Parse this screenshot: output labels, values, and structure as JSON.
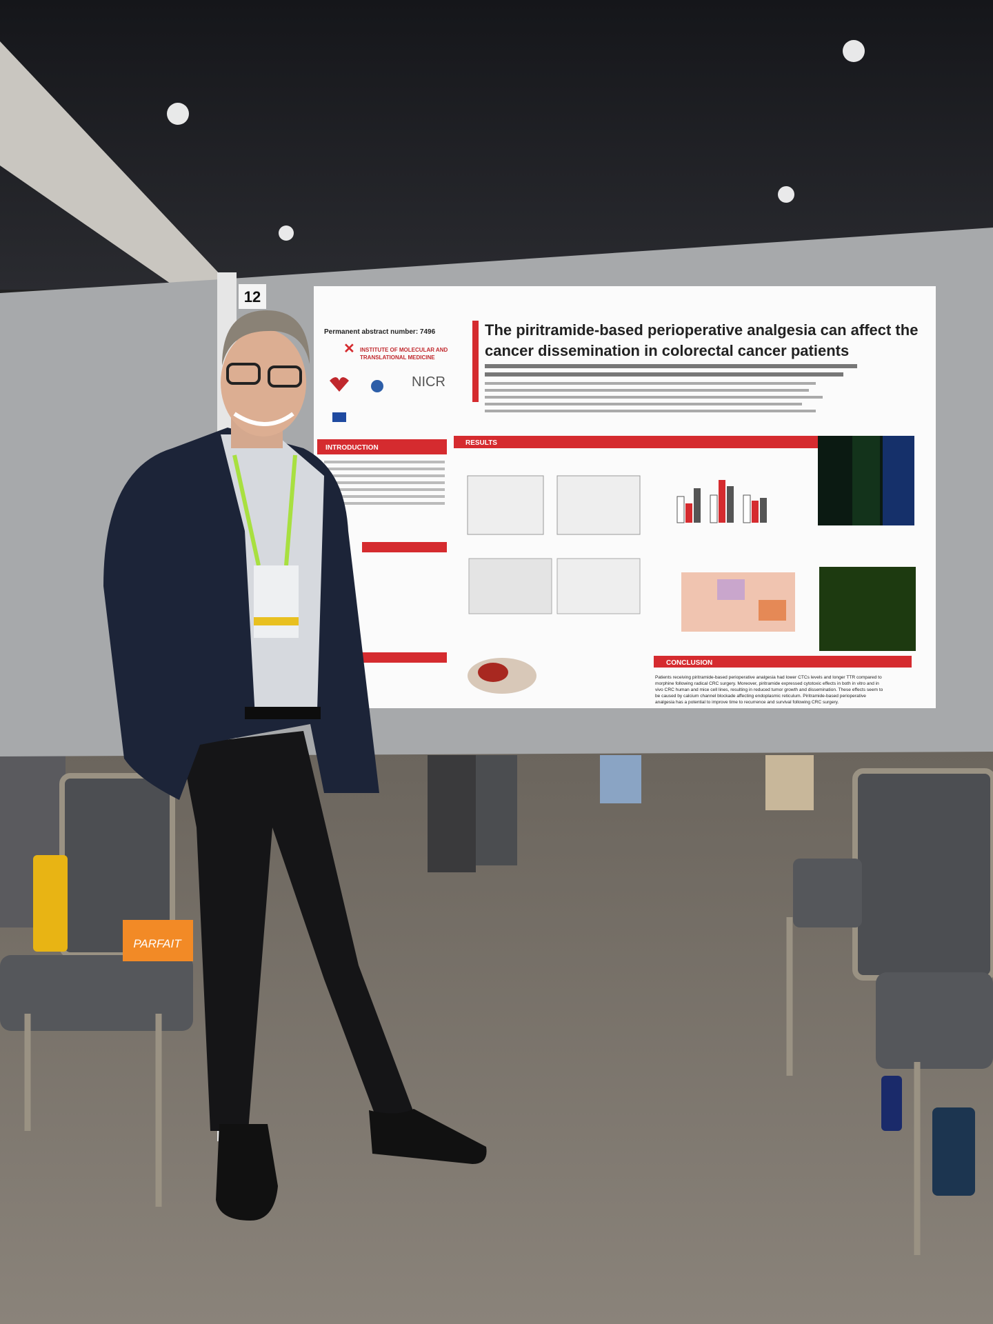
{
  "board": {
    "poster_number": "12"
  },
  "poster": {
    "abstract_number": "Permanent abstract number: 7496",
    "title_lines": [
      "The piritramide-based perioperative analgesia can affect the",
      "cancer dissemination in colorectal cancer patients"
    ],
    "logo_text": [
      "INSTITUTE OF MOLECULAR AND",
      "TRANSLATIONAL MEDICINE"
    ],
    "nicr": "NICR",
    "sections": {
      "introduction": "INTRODUCTION",
      "results": "RESULTS",
      "conclusion": "CONCLUSION"
    },
    "conclusion_lines": [
      "Patients receiving piritramide-based perioperative analgesia had lower CTCs levels and longer TTR compared to",
      "morphine following radical CRC surgery. Moreover, piritramide expressed cytotoxic effects in both in vitro and in",
      "vivo CRC human and mice cell lines, resulting in reduced tumor growth and dissemination. These effects seem to",
      "be caused by calcium channel blockade affecting endoplasmic reticulum. Piritramide-based perioperative",
      "analgesia has a potential to improve time to recurrence and survival following CRC surgery."
    ]
  },
  "box_label": "PARFAIT"
}
